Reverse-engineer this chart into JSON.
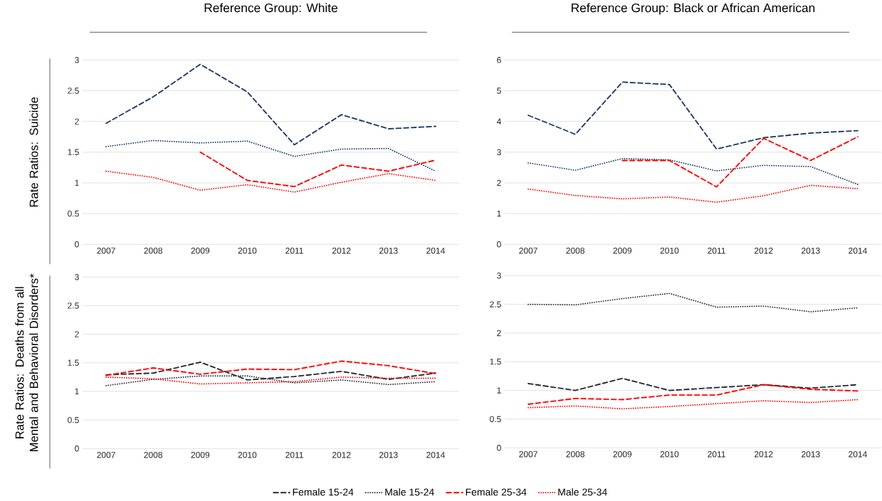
{
  "chart_data": [
    {
      "type": "line",
      "title": "Reference Group: White",
      "ylabel": "Rate Ratios: Suicide",
      "categories": [
        "2007",
        "2008",
        "2009",
        "2010",
        "2011",
        "2012",
        "2013",
        "2014"
      ],
      "ylim": [
        0,
        3
      ],
      "yticks": [
        0,
        0.5,
        1,
        1.5,
        2,
        2.5,
        3
      ],
      "grid": "y",
      "series": [
        {
          "color": "#1f3864",
          "line_style": "dashed",
          "values": [
            1.97,
            2.4,
            2.93,
            2.48,
            1.62,
            2.11,
            1.88,
            1.92
          ]
        },
        {
          "color": "#1f3864",
          "line_style": "dotted",
          "values": [
            1.59,
            1.69,
            1.65,
            1.68,
            1.43,
            1.55,
            1.56,
            1.19
          ]
        },
        {
          "color": "#ff0000",
          "line_style": "dashed",
          "values": [
            null,
            null,
            1.5,
            1.04,
            0.94,
            1.29,
            1.19,
            1.37
          ]
        },
        {
          "color": "#ff0000",
          "line_style": "dotted",
          "values": [
            1.19,
            1.09,
            0.88,
            0.97,
            0.85,
            1.01,
            1.15,
            1.04
          ]
        }
      ]
    },
    {
      "type": "line",
      "title": "Reference Group: Black or African American",
      "categories": [
        "2007",
        "2008",
        "2009",
        "2010",
        "2011",
        "2012",
        "2013",
        "2014"
      ],
      "ylim": [
        0,
        6
      ],
      "yticks": [
        0,
        1,
        2,
        3,
        4,
        5,
        6
      ],
      "grid": "y",
      "series": [
        {
          "color": "#1f3864",
          "line_style": "dashed",
          "values": [
            4.2,
            3.58,
            5.28,
            5.2,
            3.1,
            3.47,
            3.62,
            3.7
          ]
        },
        {
          "color": "#1f3864",
          "line_style": "dotted",
          "values": [
            2.65,
            2.41,
            2.79,
            2.75,
            2.39,
            2.57,
            2.53,
            1.95
          ]
        },
        {
          "color": "#ff0000",
          "line_style": "dashed",
          "values": [
            null,
            null,
            2.73,
            2.73,
            1.87,
            3.45,
            2.73,
            3.5
          ]
        },
        {
          "color": "#ff0000",
          "line_style": "dotted",
          "values": [
            1.8,
            1.59,
            1.48,
            1.54,
            1.37,
            1.58,
            1.92,
            1.81
          ]
        }
      ]
    },
    {
      "type": "line",
      "ylabel": "Rate Ratios: Deaths from all Mental and Behavioral Disorders*",
      "categories": [
        "2007",
        "2008",
        "2009",
        "2010",
        "2011",
        "2012",
        "2013",
        "2014"
      ],
      "ylim": [
        0,
        3
      ],
      "yticks": [
        0,
        0.5,
        1,
        1.5,
        2,
        2.5,
        3
      ],
      "grid": "y",
      "series": [
        {
          "color": "#222a35",
          "line_style": "dashed",
          "values": [
            1.29,
            1.32,
            1.51,
            1.2,
            1.26,
            1.35,
            1.21,
            1.32
          ]
        },
        {
          "color": "#222a35",
          "line_style": "dotted",
          "values": [
            1.1,
            1.21,
            1.27,
            1.27,
            1.15,
            1.2,
            1.12,
            1.17
          ]
        },
        {
          "color": "#ff0000",
          "line_style": "dashed",
          "values": [
            1.28,
            1.41,
            1.3,
            1.39,
            1.38,
            1.53,
            1.45,
            1.31
          ]
        },
        {
          "color": "#ff0000",
          "line_style": "dotted",
          "values": [
            1.25,
            1.22,
            1.13,
            1.15,
            1.17,
            1.25,
            1.23,
            1.23
          ]
        }
      ]
    },
    {
      "type": "line",
      "categories": [
        "2007",
        "2008",
        "2009",
        "2010",
        "2011",
        "2012",
        "2013",
        "2014"
      ],
      "ylim": [
        0,
        3
      ],
      "yticks": [
        0,
        0.5,
        1,
        1.5,
        2,
        2.5,
        3
      ],
      "grid": "y",
      "legend": "bottom",
      "series": [
        {
          "name": "Female 15-24",
          "color": "#222a35",
          "line_style": "dashed",
          "values": [
            1.12,
            1.0,
            1.21,
            1.0,
            1.05,
            1.1,
            1.04,
            1.1
          ]
        },
        {
          "name": "Male 15-24",
          "color": "#222a35",
          "line_style": "dotted",
          "values": [
            2.5,
            2.49,
            2.6,
            2.69,
            2.45,
            2.47,
            2.37,
            2.44
          ]
        },
        {
          "name": "Female 25-34",
          "color": "#ff0000",
          "line_style": "dashed",
          "values": [
            0.76,
            0.86,
            0.84,
            0.92,
            0.92,
            1.1,
            1.02,
            0.99
          ]
        },
        {
          "name": "Male 25-34",
          "color": "#ff0000",
          "line_style": "dotted",
          "values": [
            0.7,
            0.73,
            0.68,
            0.72,
            0.77,
            0.82,
            0.79,
            0.84
          ]
        }
      ]
    }
  ]
}
